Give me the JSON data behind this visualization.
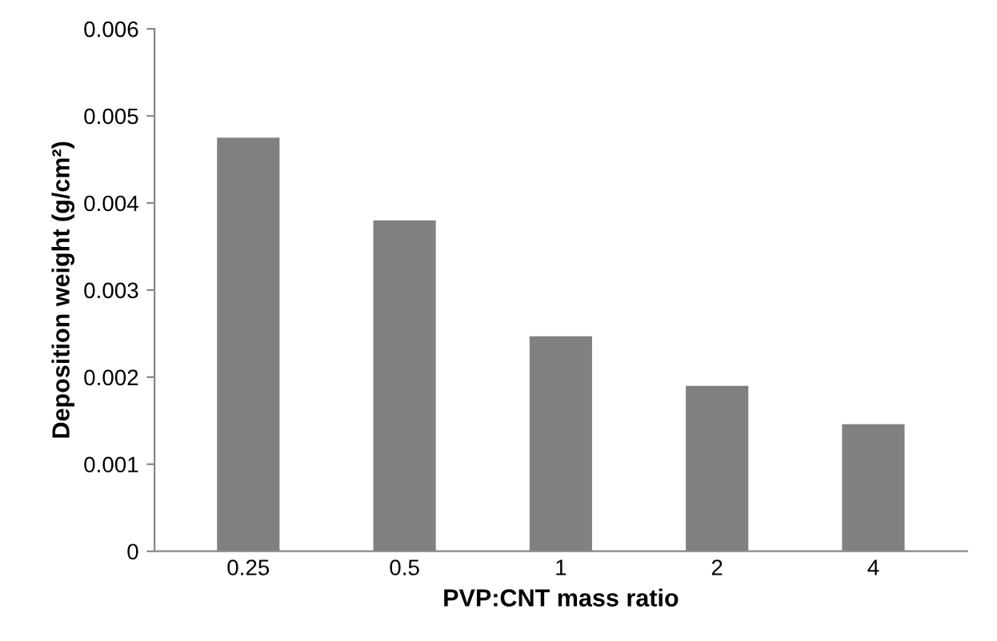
{
  "chart_data": {
    "type": "bar",
    "xlabel": "PVP:CNT mass ratio",
    "ylabel": "Deposition weight (g/cm²)",
    "categories": [
      "0.25",
      "0.5",
      "1",
      "2",
      "4"
    ],
    "values": [
      0.00475,
      0.0038,
      0.00247,
      0.0019,
      0.00146
    ],
    "color": "#808080",
    "ylim": [
      0,
      0.006
    ],
    "yticks": [
      {
        "value": 0,
        "label": "0"
      },
      0.001,
      0.002,
      0.003,
      0.004,
      0.005,
      0.006
    ],
    "grid": false,
    "legend": false
  }
}
